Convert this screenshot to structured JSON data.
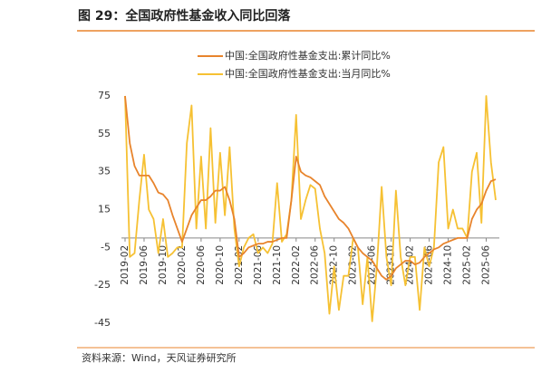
{
  "chart_data": {
    "type": "line",
    "title": "图 29：全国政府性基金收入同比回落",
    "source": "资料来源：Wind，天风证券研究所",
    "categories": [
      "2019-02",
      null,
      null,
      null,
      "2019-06",
      null,
      null,
      null,
      "2019-10",
      null,
      null,
      null,
      "2020-02",
      null,
      null,
      null,
      "2020-06",
      null,
      null,
      null,
      "2020-10",
      null,
      null,
      null,
      "2021-02",
      null,
      null,
      null,
      "2021-06",
      null,
      null,
      null,
      "2021-10",
      null,
      null,
      null,
      "2022-02",
      null,
      null,
      null,
      "2022-06",
      null,
      null,
      null,
      "2022-10",
      null,
      null,
      null,
      "2023-02",
      null,
      null,
      null,
      "2023-06",
      null,
      null,
      null,
      "2023-10",
      null,
      null,
      null,
      "2024-02",
      null,
      null,
      null,
      "2024-06",
      null,
      null,
      null,
      "2024-10",
      null,
      null,
      null,
      "2025-02",
      null,
      null,
      null,
      "2025-06",
      null,
      null
    ],
    "series": [
      {
        "name": "中国:全国政府性基金支出:累计同比%",
        "color": "#e8842c",
        "values": [
          75,
          50,
          38,
          33,
          33,
          33,
          29,
          24,
          23,
          20,
          12,
          5,
          -2,
          5,
          12,
          16,
          20,
          20,
          22,
          25,
          25,
          27,
          20,
          10,
          -10,
          -8,
          -5,
          -4,
          -3,
          -3,
          -2,
          -2,
          -1,
          0,
          0,
          20,
          43,
          35,
          33,
          32,
          30,
          28,
          22,
          18,
          14,
          10,
          8,
          5,
          0,
          -5,
          -8,
          -10,
          -12,
          -16,
          -20,
          -22,
          -20,
          -16,
          -14,
          -12,
          -12,
          -14,
          -13,
          -10,
          -8,
          -6,
          -5,
          -3,
          -2,
          -1,
          0,
          0,
          0,
          10,
          15,
          18,
          25,
          30,
          31
        ]
      },
      {
        "name": "中国:全国政府性基金支出:当月同比%",
        "color": "#f6c133",
        "values": [
          75,
          -10,
          -8,
          20,
          44,
          15,
          10,
          -8,
          10,
          -10,
          -8,
          -5,
          -5,
          50,
          70,
          5,
          43,
          5,
          58,
          8,
          45,
          12,
          48,
          5,
          -15,
          -5,
          0,
          2,
          -8,
          -5,
          -8,
          -3,
          29,
          -2,
          2,
          20,
          65,
          10,
          20,
          28,
          26,
          5,
          -8,
          -40,
          -15,
          -38,
          -20,
          -20,
          0,
          -5,
          -35,
          -10,
          -44,
          -15,
          27,
          -10,
          -25,
          25,
          -10,
          -25,
          -10,
          -10,
          -38,
          -5,
          -15,
          -5,
          40,
          48,
          5,
          15,
          5,
          5,
          0,
          35,
          45,
          8,
          75,
          40,
          20
        ]
      }
    ],
    "ylim": [
      -45,
      75
    ],
    "yticks": [
      75,
      55,
      35,
      15,
      -5,
      -25,
      -45
    ]
  }
}
